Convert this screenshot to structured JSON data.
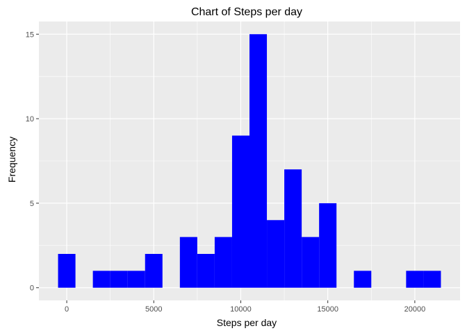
{
  "chart_data": {
    "type": "bar",
    "title": "Chart of Steps per day",
    "xlabel": "Steps per day",
    "ylabel": "Frequency",
    "bin_width": 1000,
    "bins": [
      {
        "center": 0,
        "count": 2
      },
      {
        "center": 1000,
        "count": 0
      },
      {
        "center": 2000,
        "count": 1
      },
      {
        "center": 3000,
        "count": 1
      },
      {
        "center": 4000,
        "count": 1
      },
      {
        "center": 5000,
        "count": 2
      },
      {
        "center": 6000,
        "count": 0
      },
      {
        "center": 7000,
        "count": 3
      },
      {
        "center": 8000,
        "count": 2
      },
      {
        "center": 9000,
        "count": 3
      },
      {
        "center": 10000,
        "count": 9
      },
      {
        "center": 11000,
        "count": 15
      },
      {
        "center": 12000,
        "count": 4
      },
      {
        "center": 13000,
        "count": 7
      },
      {
        "center": 14000,
        "count": 3
      },
      {
        "center": 15000,
        "count": 5
      },
      {
        "center": 16000,
        "count": 0
      },
      {
        "center": 17000,
        "count": 1
      },
      {
        "center": 18000,
        "count": 0
      },
      {
        "center": 19000,
        "count": 0
      },
      {
        "center": 20000,
        "count": 1
      },
      {
        "center": 21000,
        "count": 1
      }
    ],
    "xlim": [
      -1600,
      22600
    ],
    "ylim": [
      -0.75,
      15.75
    ],
    "xticks": [
      0,
      5000,
      10000,
      15000,
      20000
    ],
    "xtick_labels": [
      "0",
      "5000",
      "10000",
      "15000",
      "20000"
    ],
    "yticks": [
      0,
      5,
      10,
      15
    ],
    "ytick_labels": [
      "0",
      "5",
      "10",
      "15"
    ],
    "bar_color": "#0000ff",
    "panel_background": "#ebebeb",
    "grid_color": "#ffffff",
    "grid": true,
    "legend": "none"
  }
}
